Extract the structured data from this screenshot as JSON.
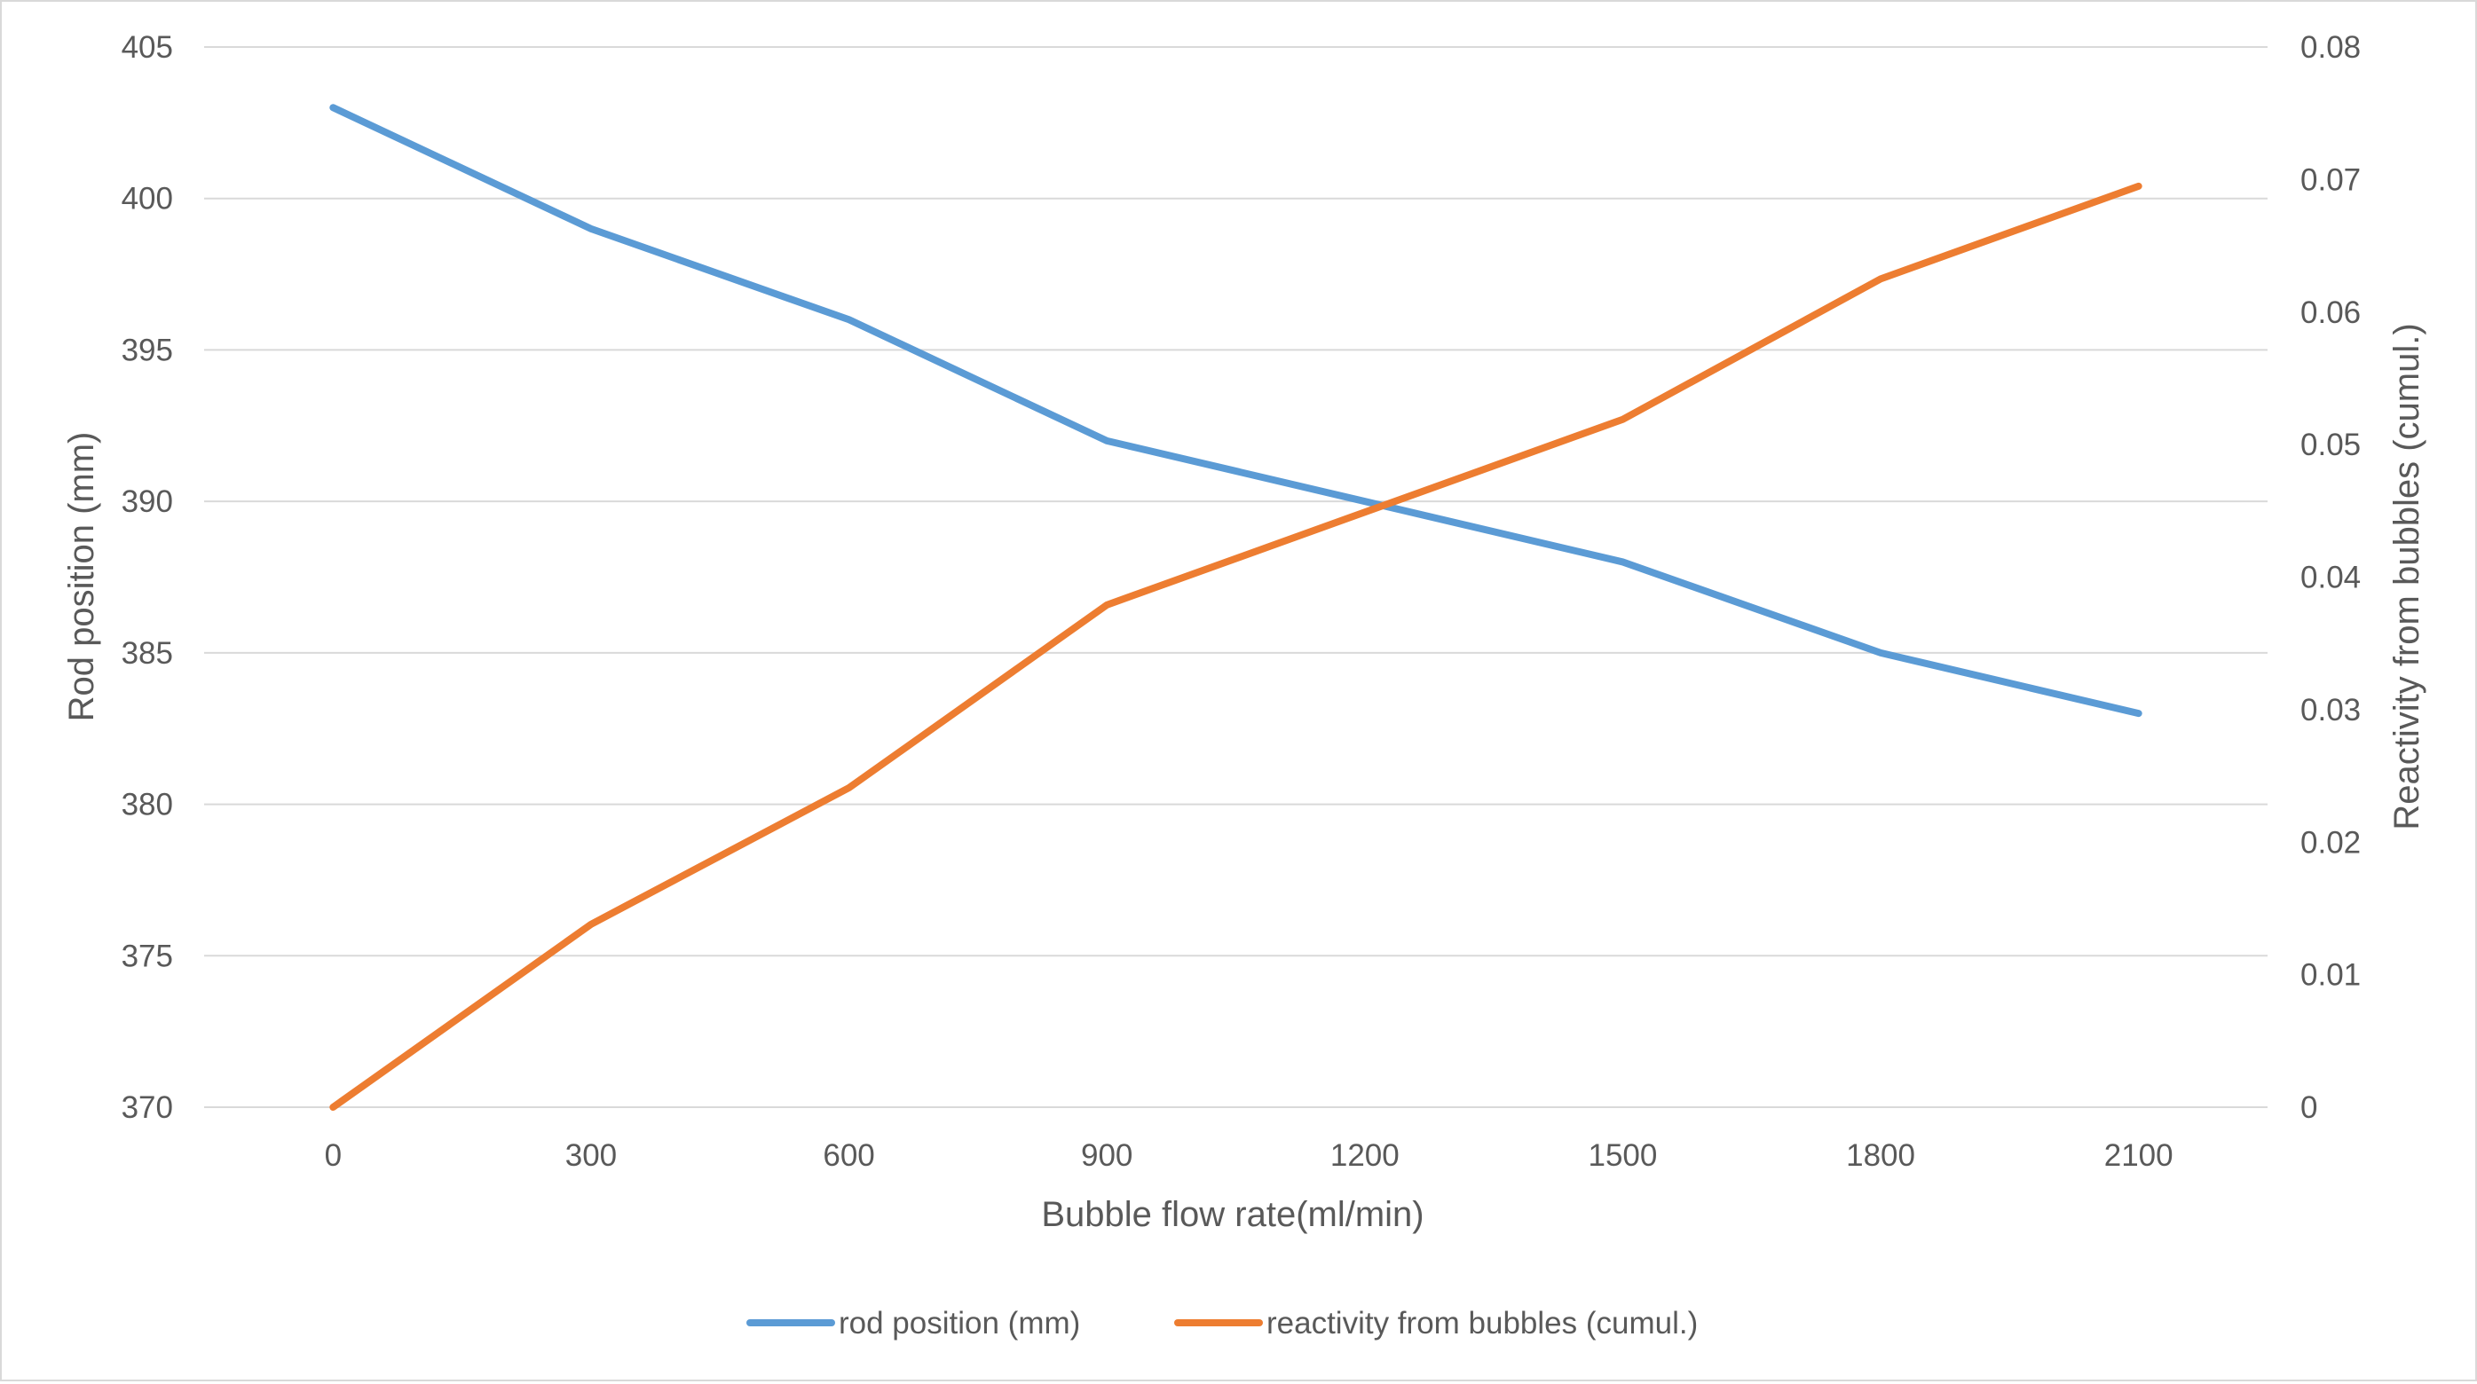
{
  "chart_data": {
    "type": "line",
    "title": "",
    "xlabel": "Bubble flow rate(ml/min)",
    "ylabel": "Rod position (mm)",
    "y2label": "Reactivity from bubbles (cumul.)",
    "categories": [
      "0",
      "300",
      "600",
      "900",
      "1200",
      "1500",
      "1800",
      "2100"
    ],
    "x": [
      0,
      300,
      600,
      900,
      1200,
      1500,
      1800,
      2100
    ],
    "ylim": [
      370,
      405
    ],
    "y_ticks": [
      370,
      375,
      380,
      385,
      390,
      395,
      400,
      405
    ],
    "y2lim": [
      0,
      0.08
    ],
    "y2_ticks": [
      "0",
      "0.01",
      "0.02",
      "0.03",
      "0.04",
      "0.05",
      "0.06",
      "0.07",
      "0.08"
    ],
    "grid": true,
    "legend_position": "bottom",
    "series": [
      {
        "name": "rod position (mm)",
        "axis": "left",
        "color": "#5b9bd5",
        "values": [
          403,
          399,
          396,
          392,
          null,
          388,
          385,
          383
        ]
      },
      {
        "name": "reactivity from bubbles (cumul.)",
        "axis": "right",
        "color": "#ed7d31",
        "values": [
          0,
          0.0138,
          0.0241,
          0.0379,
          null,
          0.0519,
          0.0625,
          0.0695
        ]
      }
    ]
  }
}
